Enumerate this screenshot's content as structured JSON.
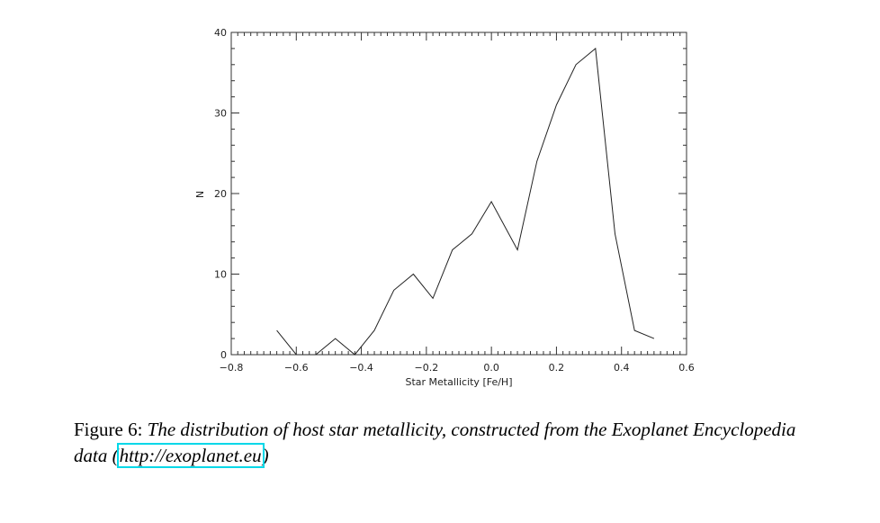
{
  "chart_data": {
    "type": "line",
    "xlabel": "Star Metallicity [Fe/H]",
    "ylabel": "N",
    "xlim": [
      -0.8,
      0.6
    ],
    "ylim": [
      0,
      40
    ],
    "x_ticks": [
      "-0.8",
      "-0.6",
      "-0.4",
      "-0.2",
      "0.0",
      "0.2",
      "0.4",
      "0.6"
    ],
    "y_ticks": [
      "0",
      "10",
      "20",
      "30",
      "40"
    ],
    "x": [
      -0.66,
      -0.6,
      -0.54,
      -0.48,
      -0.42,
      -0.36,
      -0.3,
      -0.24,
      -0.18,
      -0.12,
      -0.06,
      0.0,
      0.08,
      0.14,
      0.2,
      0.26,
      0.32,
      0.38,
      0.44,
      0.5
    ],
    "values": [
      3,
      0,
      0,
      2,
      0,
      3,
      8,
      10,
      7,
      13,
      15,
      19,
      13,
      24,
      31,
      36,
      38,
      15,
      3,
      2
    ]
  },
  "caption": {
    "label": "Figure 6: ",
    "text": "The distribution of host star metallicity, constructed from the Exoplanet Encyclopedia data (",
    "link": "http://exoplanet.eu",
    "close": ")"
  }
}
